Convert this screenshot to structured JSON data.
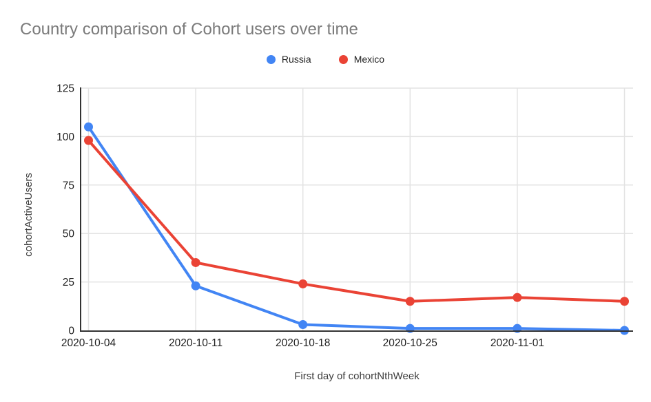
{
  "chart_data": {
    "type": "line",
    "title": "Country comparison of Cohort users over time",
    "xlabel": "First day of cohortNthWeek",
    "ylabel": "cohortActiveUsers",
    "categories": [
      "2020-10-04",
      "2020-10-11",
      "2020-10-18",
      "2020-10-25",
      "2020-11-01",
      ""
    ],
    "y_ticks": [
      0,
      25,
      50,
      75,
      100,
      125
    ],
    "ylim": [
      0,
      125
    ],
    "grid": true,
    "legend_position": "top-center",
    "series": [
      {
        "name": "Russia",
        "color": "#4285F4",
        "values": [
          105,
          23,
          3,
          1,
          1,
          0
        ]
      },
      {
        "name": "Mexico",
        "color": "#EA4335",
        "values": [
          98,
          35,
          24,
          15,
          17,
          15
        ]
      }
    ]
  }
}
